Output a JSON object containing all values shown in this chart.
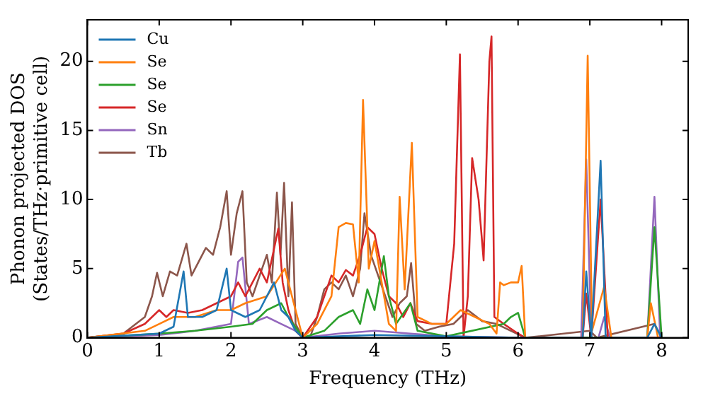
{
  "chart_data": {
    "type": "line",
    "xlabel": "Frequency (THz)",
    "ylabel": "Phonon projected DOS\n(States/THz·primitive cell)",
    "xlim": [
      0,
      8.37
    ],
    "ylim": [
      0,
      23
    ],
    "xticks": [
      0,
      1,
      2,
      3,
      4,
      5,
      6,
      7,
      8
    ],
    "yticks": [
      0,
      5,
      10,
      15,
      20
    ],
    "legend": "top left",
    "marker": "none",
    "line_style": "solid",
    "series": [
      {
        "name": "Cu",
        "color": "#1f77b4",
        "x": [
          0,
          1.0,
          1.2,
          1.34,
          1.4,
          1.6,
          1.8,
          1.94,
          2.0,
          2.2,
          2.4,
          2.6,
          2.7,
          2.8,
          2.9,
          3.0,
          4.0,
          5.0,
          6.0,
          6.9,
          6.95,
          7.02,
          7.15,
          7.22,
          7.8,
          7.9,
          8.0
        ],
        "values": [
          0,
          0.3,
          0.8,
          4.8,
          1.5,
          1.5,
          2,
          5,
          2,
          1.5,
          2,
          4,
          2,
          1.5,
          0.5,
          0,
          0.2,
          0.1,
          0,
          0,
          4.8,
          0,
          12.8,
          0,
          0,
          1,
          0
        ]
      },
      {
        "name": "Se",
        "color": "#ff7f0e",
        "x": [
          0,
          0.8,
          1.0,
          1.2,
          1.5,
          1.8,
          2.0,
          2.2,
          2.5,
          2.75,
          2.85,
          3.0,
          3.2,
          3.4,
          3.5,
          3.6,
          3.7,
          3.78,
          3.84,
          3.92,
          4.0,
          4.1,
          4.2,
          4.3,
          4.35,
          4.42,
          4.52,
          4.6,
          4.8,
          5.0,
          5.2,
          5.4,
          5.6,
          5.7,
          5.75,
          5.8,
          5.9,
          6.0,
          6.05,
          6.1,
          6.9,
          6.97,
          7.03,
          7.2,
          7.3,
          7.8,
          7.85,
          7.95
        ],
        "values": [
          0,
          0.5,
          1,
          1.5,
          1.5,
          2,
          2,
          2.5,
          3,
          5,
          3,
          0,
          1,
          3,
          8,
          8.3,
          8.2,
          4,
          17.2,
          5,
          7,
          4,
          1,
          0.5,
          10.2,
          3.5,
          14.1,
          1.5,
          1,
          1,
          2,
          1.5,
          1,
          0.3,
          4,
          3.8,
          4,
          4,
          5.2,
          0,
          0,
          20.4,
          0.5,
          3.7,
          0,
          0,
          2.5,
          0
        ]
      },
      {
        "name": "Se",
        "color": "#2ca02c",
        "x": [
          0,
          1.0,
          1.5,
          2.0,
          2.3,
          2.5,
          2.7,
          2.8,
          3.0,
          3.3,
          3.5,
          3.7,
          3.8,
          3.9,
          4.0,
          4.13,
          4.2,
          4.3,
          4.5,
          4.6,
          5.0,
          5.8,
          5.9,
          6.0,
          6.1,
          7.8,
          7.9,
          8.0
        ],
        "values": [
          0,
          0.3,
          0.5,
          0.8,
          1,
          2,
          2.5,
          1.5,
          0,
          0.5,
          1.5,
          2,
          1,
          3.5,
          2,
          5.9,
          3,
          1,
          2.5,
          0.5,
          0.1,
          1,
          1.5,
          1.8,
          0,
          0,
          8,
          0
        ]
      },
      {
        "name": "Se",
        "color": "#d62728",
        "x": [
          0,
          0.5,
          0.8,
          1.0,
          1.1,
          1.2,
          1.4,
          1.6,
          1.8,
          2.0,
          2.1,
          2.2,
          2.4,
          2.5,
          2.66,
          2.72,
          2.8,
          2.9,
          3.0,
          3.2,
          3.3,
          3.4,
          3.5,
          3.6,
          3.7,
          3.8,
          3.9,
          4.0,
          4.1,
          4.2,
          4.3,
          4.4,
          4.5,
          4.6,
          4.8,
          5.0,
          5.11,
          5.19,
          5.24,
          5.3,
          5.36,
          5.45,
          5.52,
          5.6,
          5.63,
          5.67,
          5.8,
          6.0,
          6.1,
          6.9,
          6.95,
          7.02,
          7.15,
          7.25,
          8.0
        ],
        "values": [
          0,
          0.3,
          1,
          2,
          1.5,
          2,
          1.8,
          2,
          2.5,
          3,
          4,
          3,
          5,
          4,
          7.9,
          4,
          2,
          0.5,
          0,
          1.5,
          3,
          4.5,
          4,
          4.9,
          4.5,
          6,
          8,
          7.5,
          5,
          3,
          2.5,
          1.5,
          2.5,
          1.2,
          1,
          1,
          6.8,
          20.5,
          0,
          3,
          13,
          10,
          5.6,
          20,
          21.8,
          1.5,
          1,
          0.3,
          0,
          0,
          3.2,
          0,
          10,
          0,
          0
        ]
      },
      {
        "name": "Sn",
        "color": "#9467bd",
        "x": [
          0,
          1.0,
          1.5,
          2.0,
          2.1,
          2.16,
          2.25,
          2.5,
          2.7,
          2.9,
          3.0,
          3.5,
          4.0,
          4.5,
          5.0,
          6.0,
          6.88,
          6.95,
          7.02,
          7.12,
          7.2,
          7.28,
          7.8,
          7.9,
          7.98
        ],
        "values": [
          0,
          0.2,
          0.5,
          1,
          5.5,
          5.8,
          1,
          1.5,
          1,
          0.5,
          0,
          0.3,
          0.5,
          0.3,
          0.1,
          0,
          0,
          12.9,
          0,
          0,
          1.5,
          0,
          0,
          10.2,
          0
        ]
      },
      {
        "name": "Tb",
        "color": "#8c564b",
        "x": [
          0,
          0.5,
          0.8,
          0.9,
          0.97,
          1.05,
          1.15,
          1.25,
          1.38,
          1.45,
          1.55,
          1.65,
          1.75,
          1.85,
          1.94,
          2.0,
          2.08,
          2.16,
          2.22,
          2.3,
          2.4,
          2.5,
          2.57,
          2.64,
          2.69,
          2.74,
          2.8,
          2.85,
          2.9,
          3.0,
          3.1,
          3.2,
          3.3,
          3.4,
          3.5,
          3.6,
          3.7,
          3.8,
          3.86,
          3.95,
          4.05,
          4.15,
          4.25,
          4.35,
          4.45,
          4.51,
          4.58,
          4.7,
          4.9,
          5.1,
          5.3,
          5.5,
          5.7,
          5.9,
          6.1,
          7.0,
          7.1,
          7.9,
          8.0
        ],
        "values": [
          0,
          0.3,
          1.5,
          3,
          4.7,
          3,
          4.8,
          4.5,
          6.8,
          4.5,
          5.5,
          6.5,
          6,
          8,
          10.6,
          6,
          9,
          10.6,
          4,
          3,
          4.5,
          6,
          4,
          10.5,
          6,
          11.2,
          3,
          9.8,
          1,
          0,
          0,
          1.5,
          3.5,
          4,
          3.5,
          4.5,
          3,
          5,
          9,
          6,
          4.5,
          3,
          1.5,
          2.5,
          3,
          5.4,
          1,
          0.5,
          0.8,
          1,
          2,
          1.2,
          1,
          0.5,
          0,
          0.5,
          0,
          1,
          0
        ]
      }
    ]
  }
}
